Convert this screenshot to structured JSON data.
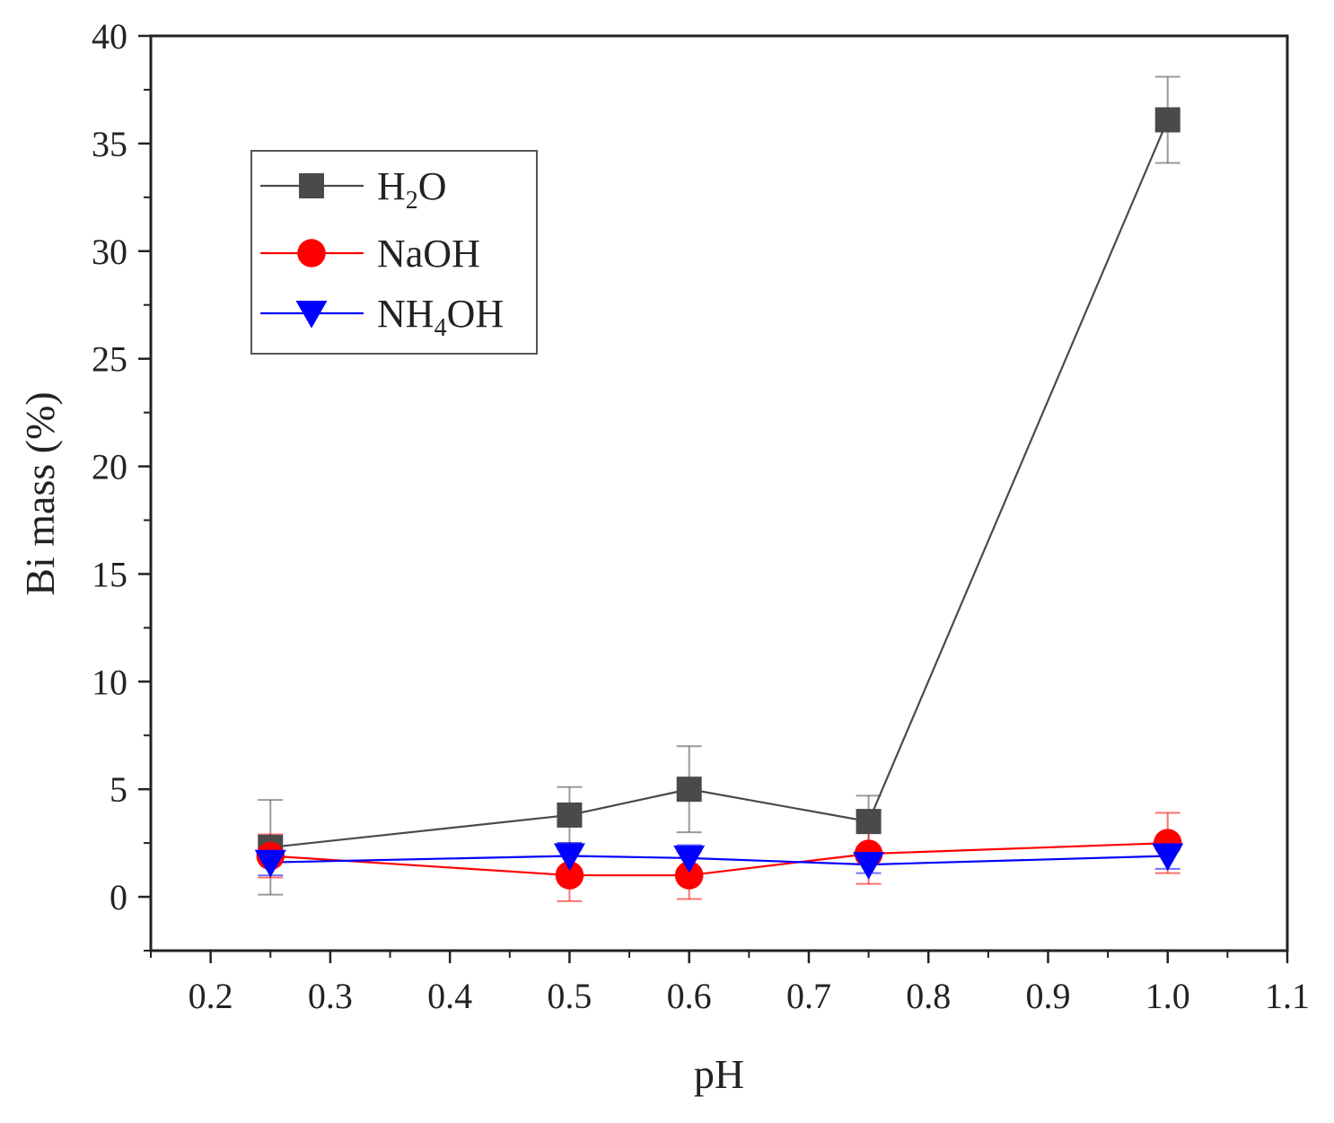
{
  "chart_data": {
    "type": "line",
    "title": "",
    "xlabel": "pH",
    "ylabel": "Bi mass (%)",
    "xlim": [
      0.15,
      1.1
    ],
    "ylim": [
      -2.5,
      40
    ],
    "xticks": [
      0.2,
      0.3,
      0.4,
      0.5,
      0.6,
      0.7,
      0.8,
      0.9,
      1.0,
      1.1
    ],
    "xtick_labels": [
      "0.2",
      "0.3",
      "0.4",
      "0.5",
      "0.6",
      "0.7",
      "0.8",
      "0.9",
      "1.0",
      "1.1"
    ],
    "yticks": [
      0,
      5,
      10,
      15,
      20,
      25,
      30,
      35,
      40
    ],
    "ytick_labels": [
      "0",
      "5",
      "10",
      "15",
      "20",
      "25",
      "30",
      "35",
      "40"
    ],
    "grid": false,
    "legend_position": "top-left",
    "x": [
      0.25,
      0.5,
      0.6,
      0.75,
      1.0
    ],
    "series": [
      {
        "name": "H2O",
        "legend_parts": [
          "H",
          "2",
          "O"
        ],
        "color": "#4a4a4a",
        "marker": "square",
        "values": [
          2.3,
          3.8,
          5.0,
          3.5,
          36.1
        ],
        "errors": [
          2.2,
          1.3,
          2.0,
          1.2,
          2.0
        ]
      },
      {
        "name": "NaOH",
        "legend_parts": [
          "NaOH",
          "",
          ""
        ],
        "color": "#ff0000",
        "marker": "circle",
        "values": [
          1.9,
          1.0,
          1.0,
          2.0,
          2.5
        ],
        "errors": [
          1.0,
          1.2,
          1.1,
          1.4,
          1.4
        ]
      },
      {
        "name": "NH4OH",
        "legend_parts": [
          "NH",
          "4",
          "OH"
        ],
        "color": "#0000ff",
        "marker": "triangle-down",
        "values": [
          1.6,
          1.9,
          1.8,
          1.5,
          1.9
        ],
        "errors": [
          0.6,
          0.6,
          0.6,
          0.4,
          0.6
        ]
      }
    ]
  }
}
